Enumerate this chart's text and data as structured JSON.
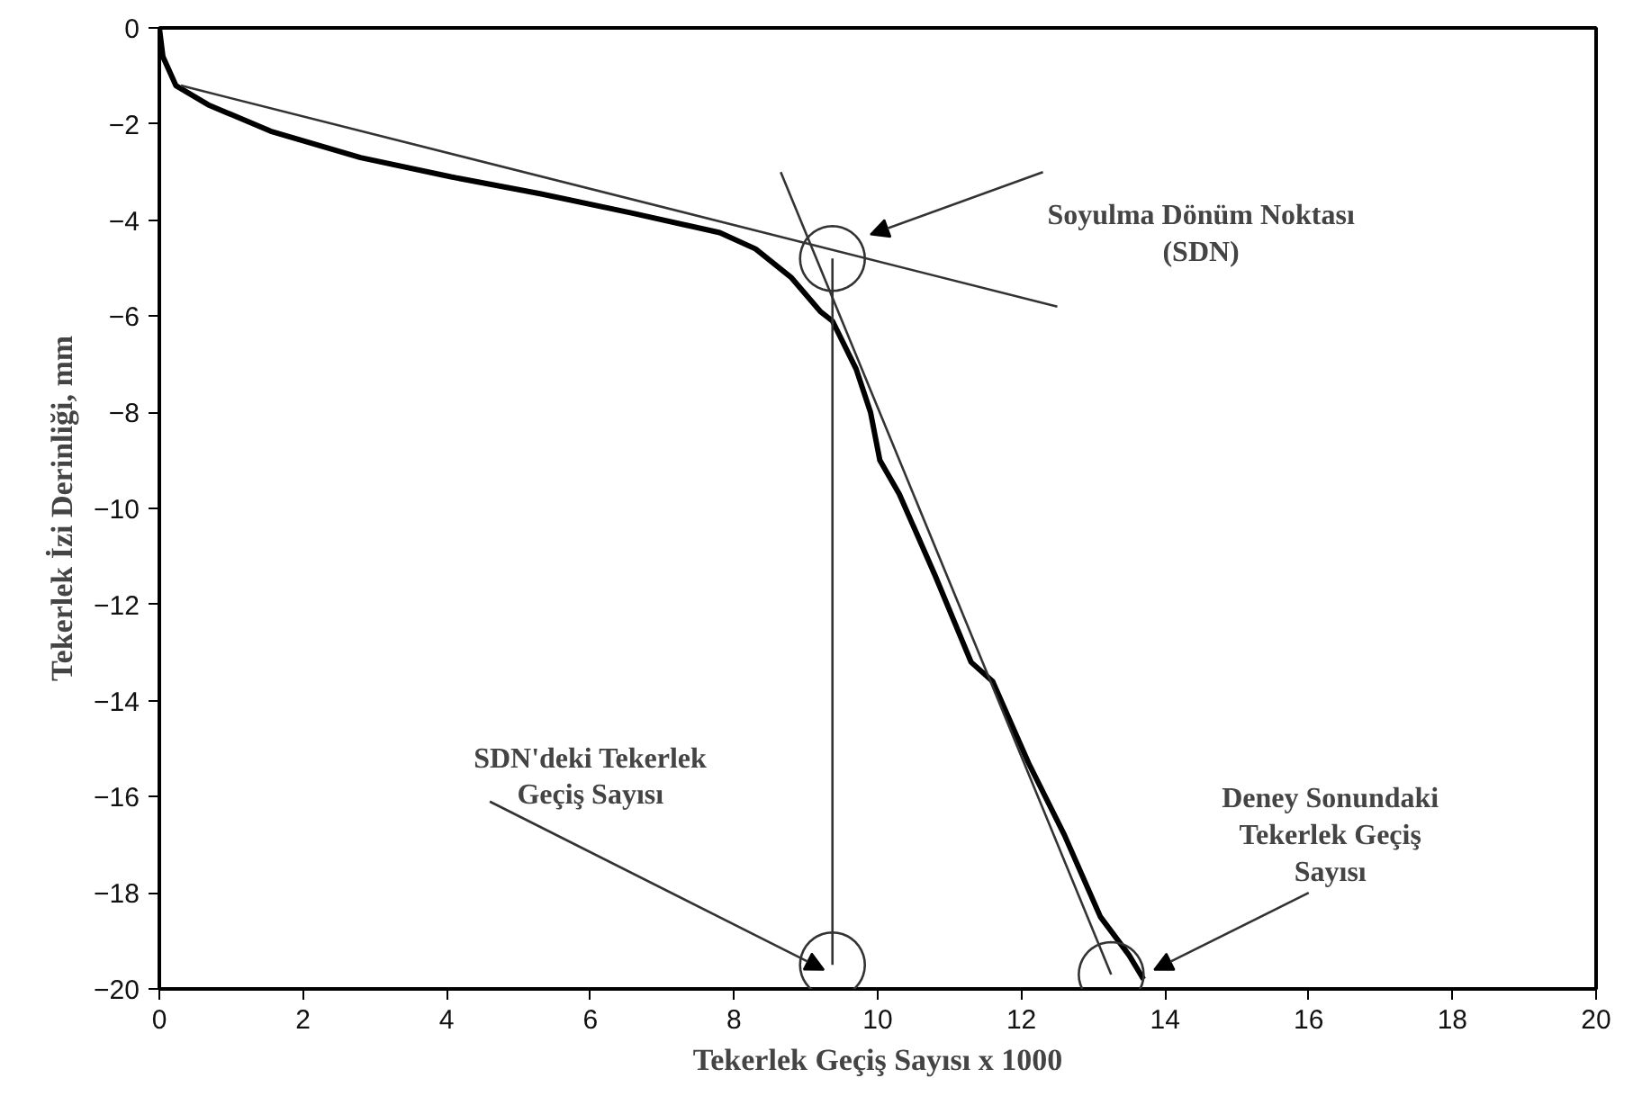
{
  "chart_data": {
    "type": "line",
    "xlabel": "Tekerlek Geçiş Sayısı x 1000",
    "ylabel": "Tekerlek İzi Derinliği, mm",
    "xlim": [
      0,
      20
    ],
    "ylim": [
      -20,
      0
    ],
    "xticks": [
      0,
      2,
      4,
      6,
      8,
      10,
      12,
      14,
      16,
      18,
      20
    ],
    "yticks": [
      0,
      -2,
      -4,
      -6,
      -8,
      -10,
      -12,
      -14,
      -16,
      -18,
      -20
    ],
    "grid": false,
    "marker": "none",
    "line_style": "solid",
    "series": [
      {
        "color": "#000000",
        "x": [
          0,
          0.05,
          0.23,
          0.68,
          1.55,
          2.8,
          4.06,
          5.3,
          6.57,
          7.8,
          8.3,
          8.8,
          9.2,
          9.37,
          9.7,
          9.9,
          10.03,
          10.3,
          10.8,
          11.3,
          11.6,
          12.1,
          12.6,
          13.1,
          13.5,
          13.7
        ],
        "values": [
          0,
          -0.6,
          -1.2,
          -1.6,
          -2.15,
          -2.7,
          -3.1,
          -3.45,
          -3.85,
          -4.26,
          -4.6,
          -5.2,
          -5.9,
          -6.1,
          -7.1,
          -8.0,
          -9.0,
          -9.7,
          -11.4,
          -13.2,
          -13.6,
          -15.3,
          -16.8,
          -18.5,
          -19.3,
          -19.8
        ]
      },
      {
        "type": "line",
        "color": "#333333",
        "x": [
          0.3,
          12.5
        ],
        "values": [
          -1.2,
          -5.8
        ]
      },
      {
        "type": "line",
        "color": "#333333",
        "x": [
          8.65,
          13.25
        ],
        "values": [
          -3.0,
          -19.7
        ]
      },
      {
        "type": "line",
        "color": "#333333",
        "x": [
          9.37,
          9.37
        ],
        "values": [
          -4.8,
          -19.5
        ]
      }
    ],
    "annotations": [
      "Soyulma Dönüm Noktası\n(SDN)",
      "SDN'deki Tekerlek\nGeçiş Sayısı",
      "Deney Sonundaki\nTekerlek Geçiş\nSayısı"
    ]
  }
}
